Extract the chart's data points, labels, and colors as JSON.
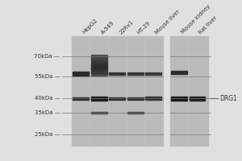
{
  "background_color": "#e0e0e0",
  "blot_bg": "#c0c0c0",
  "lane_labels": [
    "HepG2",
    "A-549",
    "22Rv1",
    "HT-29",
    "Mouse liver",
    "Mouse kidney",
    "Rat liver"
  ],
  "mw_markers": [
    "70kDa",
    "55kDa",
    "40kDa",
    "35kDa",
    "25kDa"
  ],
  "drg1_label": "DRG1",
  "label_fontsize": 5,
  "mw_fontsize": 5
}
